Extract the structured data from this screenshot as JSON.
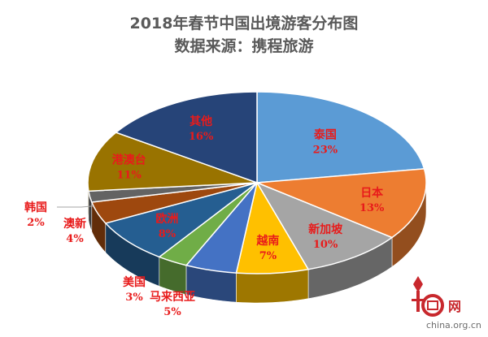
{
  "chart_data": {
    "type": "pie",
    "title": "2018年春节中国出境游客分布图",
    "subtitle": "数据来源：携程旅游",
    "slices": [
      {
        "label": "泰国",
        "value": 23,
        "value_label": "23%",
        "color": "#5b9bd5"
      },
      {
        "label": "日本",
        "value": 13,
        "value_label": "13%",
        "color": "#ed7d31"
      },
      {
        "label": "新加坡",
        "value": 10,
        "value_label": "10%",
        "color": "#a5a5a5"
      },
      {
        "label": "越南",
        "value": 7,
        "value_label": "7%",
        "color": "#ffc000"
      },
      {
        "label": "马来西亚",
        "value": 5,
        "value_label": "5%",
        "color": "#4472c4"
      },
      {
        "label": "美国",
        "value": 3,
        "value_label": "3%",
        "color": "#70ad47"
      },
      {
        "label": "欧洲",
        "value": 8,
        "value_label": "8%",
        "color": "#255e91"
      },
      {
        "label": "澳新",
        "value": 4,
        "value_label": "4%",
        "color": "#9e480e"
      },
      {
        "label": "韩国",
        "value": 2,
        "value_label": "2%",
        "color": "#636363"
      },
      {
        "label": "港澳台",
        "value": 11,
        "value_label": "11%",
        "color": "#997300"
      },
      {
        "label": "其他",
        "value": 16,
        "value_label": "16%",
        "color": "#264478"
      }
    ]
  },
  "watermark": {
    "text": "china.org.cn",
    "net": "网"
  }
}
